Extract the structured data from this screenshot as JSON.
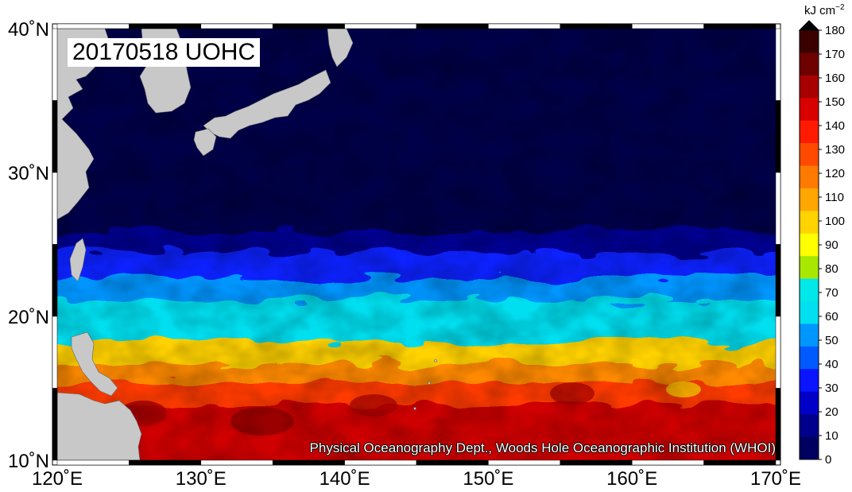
{
  "map": {
    "date_label": "20170518 UOHC",
    "credit": "Physical Oceanography Dept., Woods Hole Oceanographic Institution (WHOI)",
    "lat_labels": [
      "40˚N",
      "30˚N",
      "20˚N",
      "10˚N"
    ],
    "lon_labels": [
      "120˚E",
      "130˚E",
      "140˚E",
      "150˚E",
      "160˚E",
      "170˚E"
    ],
    "land_color": "#c8c8c8",
    "ocean_base_color": "#00004a"
  },
  "colorbar": {
    "unit_base": "kJ cm",
    "unit_exp": "−2",
    "ticks": [
      "180",
      "170",
      "160",
      "150",
      "140",
      "130",
      "120",
      "110",
      "100",
      "90",
      "80",
      "70",
      "60",
      "50",
      "40",
      "30",
      "20",
      "10",
      "0"
    ],
    "colors_top_down": [
      "#3a0000",
      "#6e0000",
      "#a80000",
      "#d80000",
      "#ff1a00",
      "#ff4a00",
      "#ff7a00",
      "#ffa600",
      "#ffd200",
      "#ffff00",
      "#a8e800",
      "#00e8e8",
      "#00e0f0",
      "#0096ff",
      "#005aff",
      "#0a14ff",
      "#0000c8",
      "#00008c",
      "#000060"
    ],
    "top_arrow_color": "#000000"
  }
}
